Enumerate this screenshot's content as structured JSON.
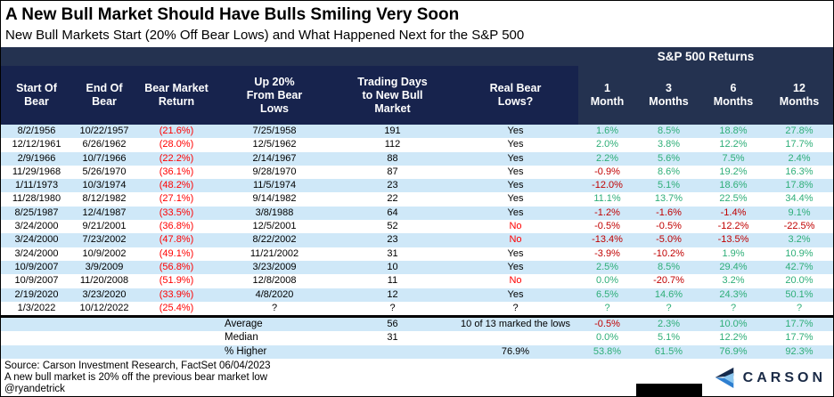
{
  "title": "A New Bull Market Should Have Bulls Smiling Very Soon",
  "subtitle": "New Bull Markets Start (20% Off Bear Lows) and What Happened Next for the S&P 500",
  "chart_data": {
    "type": "table",
    "group_header": "S&P 500 Returns",
    "columns": [
      "Start Of\nBear",
      "End Of\nBear",
      "Bear Market\nReturn",
      "Up 20%\nFrom Bear\nLows",
      "Trading Days\nto New Bull\nMarket",
      "Real Bear\nLows?",
      "1\nMonth",
      "3\nMonths",
      "6\nMonths",
      "12\nMonths"
    ],
    "rows": [
      [
        "8/2/1956",
        "10/22/1957",
        "(21.6%)",
        "7/25/1958",
        "191",
        "Yes",
        "1.6%",
        "8.5%",
        "18.8%",
        "27.8%"
      ],
      [
        "12/12/1961",
        "6/26/1962",
        "(28.0%)",
        "12/5/1962",
        "112",
        "Yes",
        "2.0%",
        "3.8%",
        "12.2%",
        "17.7%"
      ],
      [
        "2/9/1966",
        "10/7/1966",
        "(22.2%)",
        "2/14/1967",
        "88",
        "Yes",
        "2.2%",
        "5.6%",
        "7.5%",
        "2.4%"
      ],
      [
        "11/29/1968",
        "5/26/1970",
        "(36.1%)",
        "9/28/1970",
        "87",
        "Yes",
        "-0.9%",
        "8.6%",
        "19.2%",
        "16.3%"
      ],
      [
        "1/11/1973",
        "10/3/1974",
        "(48.2%)",
        "11/5/1974",
        "23",
        "Yes",
        "-12.0%",
        "5.1%",
        "18.6%",
        "17.8%"
      ],
      [
        "11/28/1980",
        "8/12/1982",
        "(27.1%)",
        "9/14/1982",
        "22",
        "Yes",
        "11.1%",
        "13.7%",
        "22.5%",
        "34.4%"
      ],
      [
        "8/25/1987",
        "12/4/1987",
        "(33.5%)",
        "3/8/1988",
        "64",
        "Yes",
        "-1.2%",
        "-1.6%",
        "-1.4%",
        "9.1%"
      ],
      [
        "3/24/2000",
        "9/21/2001",
        "(36.8%)",
        "12/5/2001",
        "52",
        "No",
        "-0.5%",
        "-0.5%",
        "-12.2%",
        "-22.5%"
      ],
      [
        "3/24/2000",
        "7/23/2002",
        "(47.8%)",
        "8/22/2002",
        "23",
        "No",
        "-13.4%",
        "-5.0%",
        "-13.5%",
        "3.2%"
      ],
      [
        "3/24/2000",
        "10/9/2002",
        "(49.1%)",
        "11/21/2002",
        "31",
        "Yes",
        "-3.9%",
        "-10.2%",
        "1.9%",
        "10.9%"
      ],
      [
        "10/9/2007",
        "3/9/2009",
        "(56.8%)",
        "3/23/2009",
        "10",
        "Yes",
        "2.5%",
        "8.5%",
        "29.4%",
        "42.7%"
      ],
      [
        "10/9/2007",
        "11/20/2008",
        "(51.9%)",
        "12/8/2008",
        "11",
        "No",
        "0.0%",
        "-20.7%",
        "3.2%",
        "20.0%"
      ],
      [
        "2/19/2020",
        "3/23/2020",
        "(33.9%)",
        "4/8/2020",
        "12",
        "Yes",
        "6.5%",
        "14.6%",
        "24.3%",
        "50.1%"
      ],
      [
        "1/3/2022",
        "10/12/2022",
        "(25.4%)",
        "?",
        "?",
        "?",
        "?",
        "?",
        "?",
        "?"
      ]
    ],
    "summary_rows": [
      [
        "",
        "",
        "",
        "Average",
        "56",
        "10 of 13 marked the lows",
        "-0.5%",
        "2.3%",
        "10.0%",
        "17.7%"
      ],
      [
        "",
        "",
        "",
        "Median",
        "31",
        "",
        "0.0%",
        "5.1%",
        "12.2%",
        "17.7%"
      ],
      [
        "",
        "",
        "",
        "% Higher",
        "",
        "76.9%",
        "53.8%",
        "61.5%",
        "76.9%",
        "92.3%"
      ]
    ]
  },
  "footer": {
    "source": "Source: Carson Investment Research, FactSet 06/04/2023",
    "note": "A new bull market is 20% off the previous bear market low",
    "handle": "@ryandetrick",
    "logo_text": "CARSON"
  },
  "colors": {
    "header_navy": "#17234d",
    "band_slate": "#243250",
    "stripe_blue": "#cfe8f8",
    "positive_green": "#2eae78",
    "negative_dark_red": "#c00000",
    "bright_red": "#ff0000",
    "logo_navy": "#1b2b47",
    "logo_blue": "#2e7fd0",
    "logo_light_blue": "#8dc8f0"
  }
}
